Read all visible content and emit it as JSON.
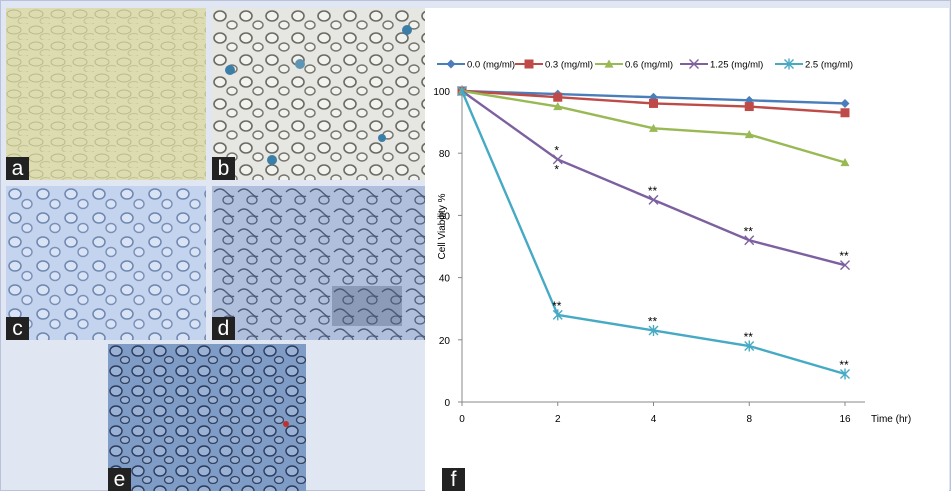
{
  "panels": {
    "a": {
      "label": "a"
    },
    "b": {
      "label": "b"
    },
    "c": {
      "label": "c"
    },
    "d": {
      "label": "d"
    },
    "e": {
      "label": "e"
    },
    "f": {
      "label": "f"
    }
  },
  "chart_data": {
    "type": "line",
    "title": "",
    "xlabel": "Time (hr)",
    "ylabel": "Cell Viability %",
    "categories": [
      "0",
      "2",
      "4",
      "8",
      "16"
    ],
    "ylim": [
      0,
      100
    ],
    "yticks": [
      0,
      20,
      40,
      60,
      80,
      100
    ],
    "grid": false,
    "legend_position": "top",
    "series": [
      {
        "name": "0.0  (mg/ml)",
        "color": "#4a7ebb",
        "marker": "diamond",
        "values": [
          100,
          99,
          98,
          97,
          96
        ]
      },
      {
        "name": "0.3  (mg/ml)",
        "color": "#be4b48",
        "marker": "square",
        "values": [
          100,
          98,
          96,
          95,
          93
        ]
      },
      {
        "name": "0.6  (mg/ml)",
        "color": "#98b954",
        "marker": "triangle",
        "values": [
          100,
          95,
          88,
          86,
          77
        ]
      },
      {
        "name": "1.25 (mg/ml)",
        "color": "#7d60a0",
        "marker": "x",
        "values": [
          100,
          78,
          65,
          52,
          44
        ]
      },
      {
        "name": "2.5  (mg/ml)",
        "color": "#46aac5",
        "marker": "star",
        "values": [
          100,
          28,
          23,
          18,
          9
        ]
      }
    ],
    "annotations": [
      {
        "series": 3,
        "point": 1,
        "text": "*",
        "position": "above"
      },
      {
        "series": 3,
        "point": 1,
        "text": "*",
        "position": "below"
      },
      {
        "series": 3,
        "point": 2,
        "text": "**",
        "position": "above"
      },
      {
        "series": 3,
        "point": 3,
        "text": "**",
        "position": "above"
      },
      {
        "series": 3,
        "point": 4,
        "text": "**",
        "position": "above"
      },
      {
        "series": 4,
        "point": 1,
        "text": "**",
        "position": "above"
      },
      {
        "series": 4,
        "point": 2,
        "text": "**",
        "position": "above"
      },
      {
        "series": 4,
        "point": 3,
        "text": "**",
        "position": "above"
      },
      {
        "series": 4,
        "point": 4,
        "text": "**",
        "position": "above"
      }
    ]
  }
}
